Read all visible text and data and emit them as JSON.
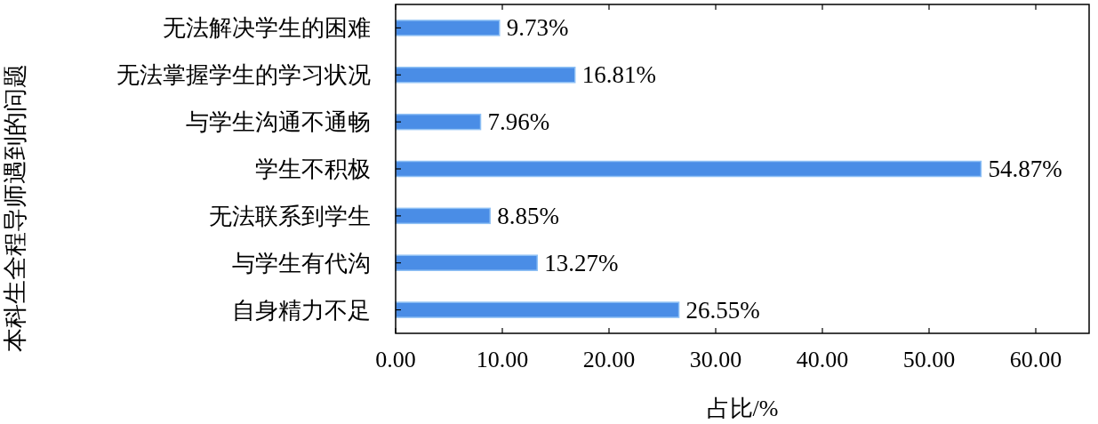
{
  "chart_data": {
    "type": "bar",
    "orientation": "horizontal",
    "xlabel": "占比/%",
    "ylabel": "本科生全程导师遇到的问题",
    "categories": [
      "无法解决学生的困难",
      "无法掌握学生的学习状况",
      "与学生沟通不通畅",
      "学生不积极",
      "无法联系到学生",
      "与学生有代沟",
      "自身精力不足"
    ],
    "values": [
      9.73,
      16.81,
      7.96,
      54.87,
      8.85,
      13.27,
      26.55
    ],
    "value_labels": [
      "9.73%",
      "16.81%",
      "7.96%",
      "54.87%",
      "8.85%",
      "13.27%",
      "26.55%"
    ],
    "color": "#4a8de6",
    "xlim": [
      0,
      65
    ],
    "xticks": [
      {
        "value": 0,
        "label": "0.00"
      },
      {
        "value": 10,
        "label": "10.00"
      },
      {
        "value": 20,
        "label": "20.00"
      },
      {
        "value": 30,
        "label": "30.00"
      },
      {
        "value": 40,
        "label": "40.00"
      },
      {
        "value": 50,
        "label": "50.00"
      },
      {
        "value": 60,
        "label": "60.00"
      }
    ],
    "grid": false
  }
}
